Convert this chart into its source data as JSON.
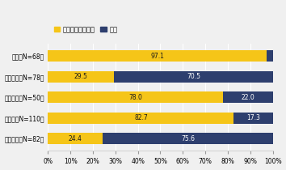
{
  "categories": [
    "日本（N=68）",
    "イギリス（N=78）",
    "フランス（N=50）",
    "ドイツ（N=110）",
    "アメリカ（N=82）"
  ],
  "stakeholder": [
    97.1,
    29.5,
    78.0,
    82.7,
    24.4
  ],
  "shareholder": [
    2.9,
    70.5,
    22.0,
    17.3,
    75.6
  ],
  "stakeholder_color": "#F5C518",
  "shareholder_color": "#2E3F6E",
  "background_color": "#F0F0F0",
  "legend_stakeholder": "ステークホルダー",
  "legend_shareholder": "株主",
  "xtick_values": [
    0,
    10,
    20,
    30,
    40,
    50,
    60,
    70,
    80,
    90,
    100
  ],
  "bar_height": 0.55,
  "label_fontsize": 5.5,
  "tick_fontsize": 5.5,
  "legend_fontsize": 6.0,
  "grid_color": "#FFFFFF",
  "grid_linewidth": 0.8
}
